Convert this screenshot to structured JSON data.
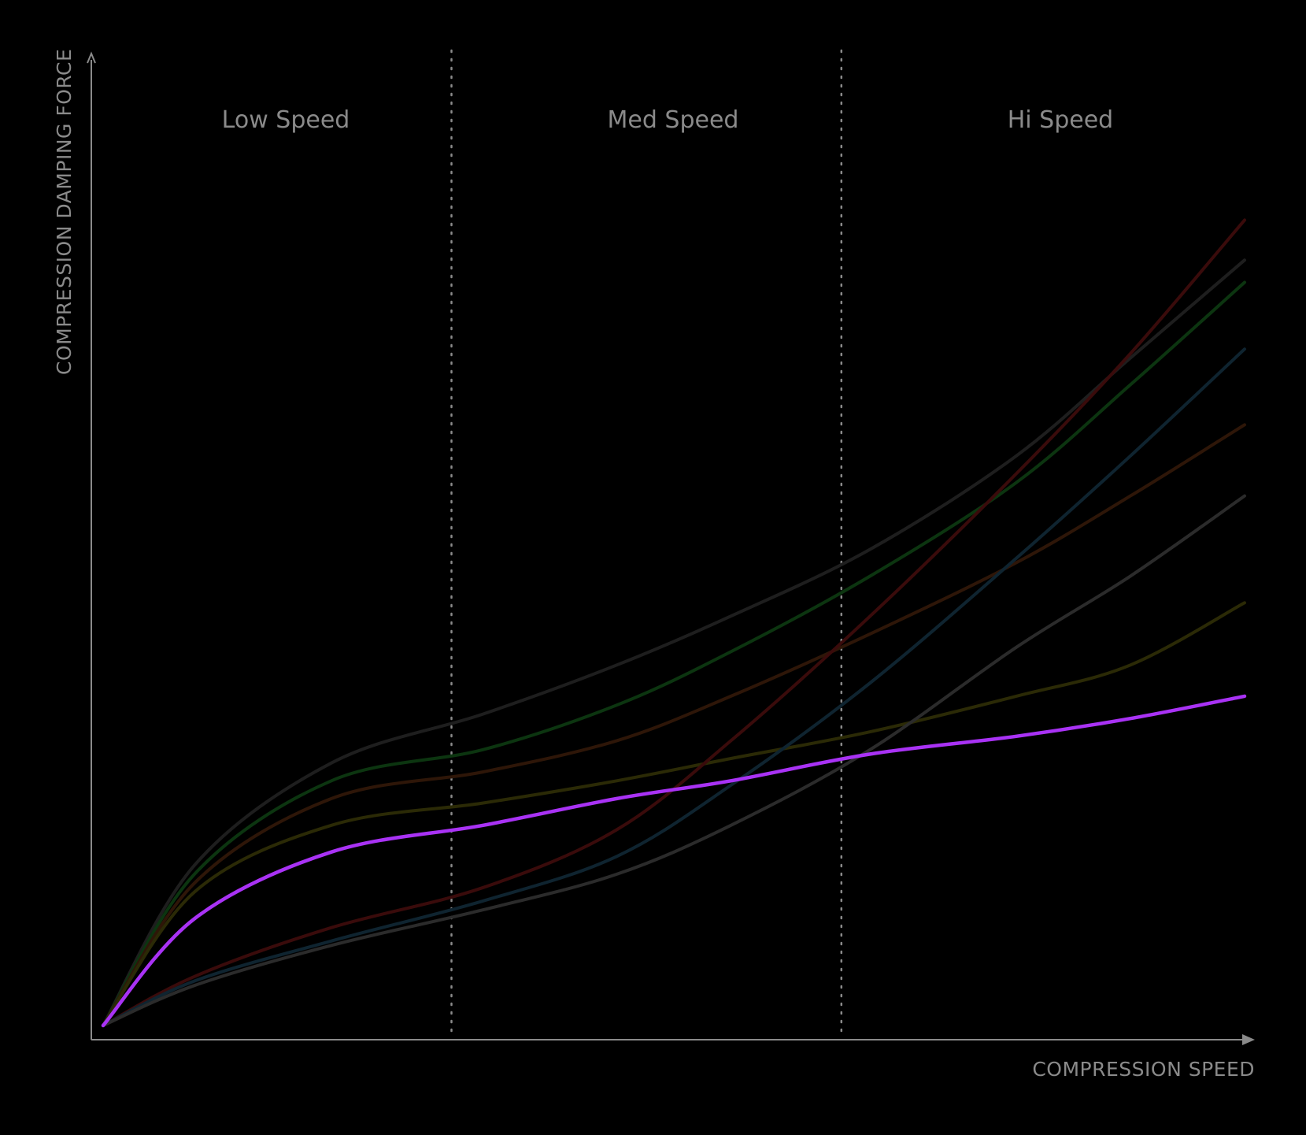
{
  "chart_data": {
    "type": "line",
    "xlabel": "COMPRESSION SPEED",
    "ylabel": "COMPRESSION DAMPING FORCE",
    "xlim": [
      0,
      100
    ],
    "ylim": [
      0,
      100
    ],
    "grid": false,
    "zones": [
      {
        "label": "Low Speed"
      },
      {
        "label": "Med Speed"
      },
      {
        "label": "Hi Speed"
      }
    ],
    "zone_boundaries": [
      33.3,
      67.2
    ],
    "series": [
      {
        "color": "#1e1e1e",
        "highlight": false,
        "x": [
          0,
          8,
          20,
          33.3,
          45,
          55,
          67.2,
          80,
          90,
          100
        ],
        "y": [
          0,
          18,
          29.5,
          35,
          40.5,
          46,
          53.5,
          64,
          75,
          86
        ]
      },
      {
        "color": "#0c3510",
        "highlight": false,
        "x": [
          0,
          8,
          20,
          33.3,
          45,
          55,
          67.2,
          80,
          90,
          100
        ],
        "y": [
          0,
          17,
          27.5,
          31,
          36,
          42,
          50.5,
          61,
          72,
          83.5
        ]
      },
      {
        "color": "#2e1608",
        "highlight": false,
        "x": [
          0,
          8,
          20,
          33.3,
          45,
          55,
          67.2,
          80,
          90,
          100
        ],
        "y": [
          0,
          16,
          25.5,
          28.5,
          32,
          37,
          44,
          52,
          59.5,
          67.5
        ]
      },
      {
        "color": "#2b2a06",
        "highlight": false,
        "x": [
          0,
          8,
          20,
          33.3,
          45,
          55,
          67.2,
          80,
          90,
          100
        ],
        "y": [
          0,
          15,
          22.5,
          25,
          27.5,
          30,
          33,
          37,
          40.5,
          47.5
        ]
      },
      {
        "color": "#a932f5",
        "highlight": true,
        "x": [
          0,
          8,
          20,
          33.3,
          45,
          55,
          67.2,
          80,
          90,
          100
        ],
        "y": [
          0,
          12,
          19.5,
          22.5,
          25.5,
          27.5,
          30.5,
          32.5,
          34.5,
          37
        ]
      },
      {
        "color": "#3a0b0b",
        "highlight": false,
        "x": [
          0,
          8,
          20,
          33.3,
          45,
          55,
          67.2,
          80,
          90,
          100
        ],
        "y": [
          0,
          5.5,
          11,
          15.5,
          22,
          32,
          46,
          62,
          75.5,
          90.5
        ]
      },
      {
        "color": "#0f2430",
        "highlight": false,
        "x": [
          0,
          8,
          20,
          33.3,
          45,
          55,
          67.2,
          80,
          90,
          100
        ],
        "y": [
          0,
          5,
          9.5,
          14,
          19,
          27,
          38.5,
          52.5,
          64,
          76
        ]
      },
      {
        "color": "#2b2b2b",
        "highlight": false,
        "x": [
          0,
          8,
          20,
          33.3,
          45,
          55,
          67.2,
          80,
          90,
          100
        ],
        "y": [
          0,
          4.5,
          9,
          13,
          17,
          22.5,
          31,
          42.5,
          50.5,
          59.5
        ]
      }
    ]
  },
  "colors": {
    "background": "#000000",
    "axis": "#8a8a8a",
    "text": "#8a8a8a",
    "highlight": "#a932f5"
  }
}
